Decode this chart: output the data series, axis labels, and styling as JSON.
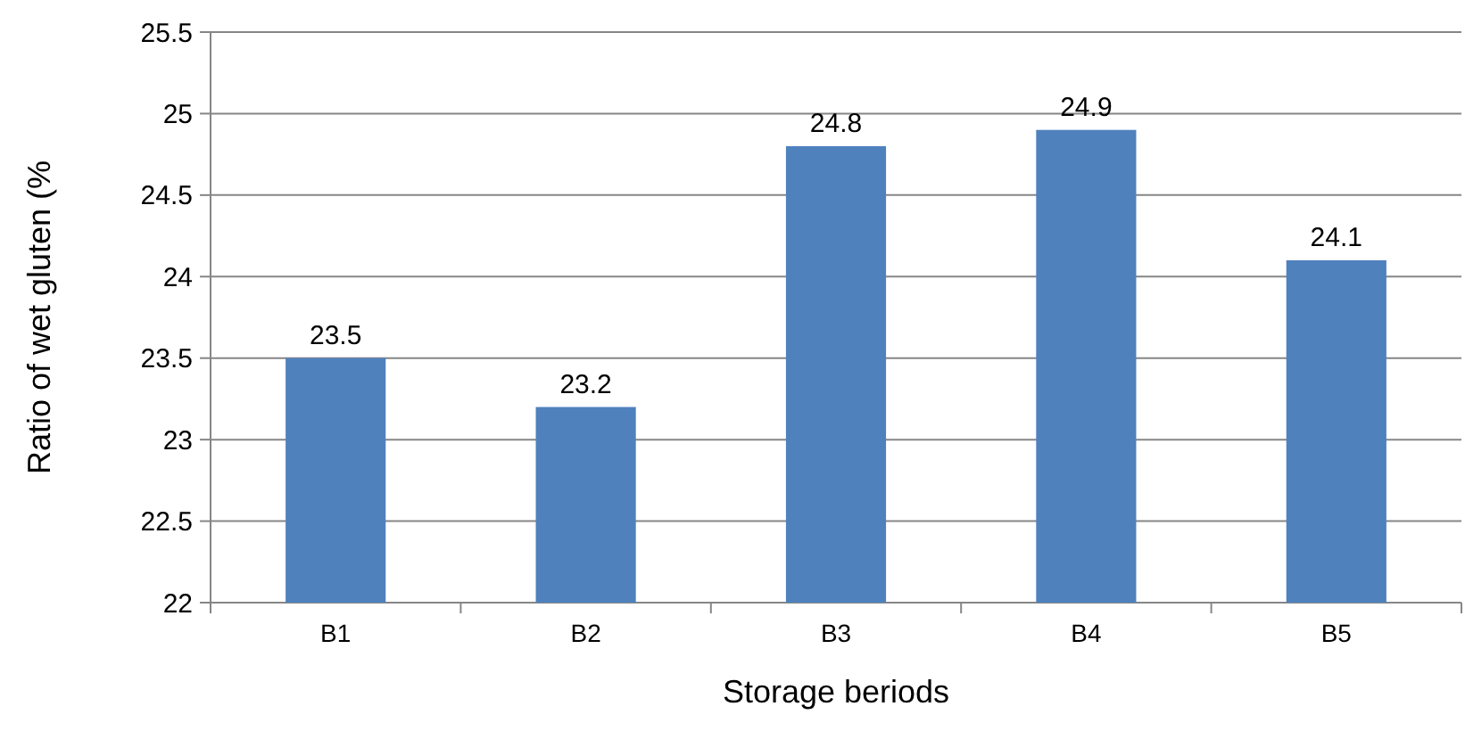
{
  "chart_data": {
    "type": "bar",
    "xlabel": "Storage beriods",
    "ylabel": "Ratio of wet gluten (%",
    "categories": [
      "B1",
      "B2",
      "B3",
      "B4",
      "B5"
    ],
    "values": [
      23.5,
      23.2,
      24.8,
      24.9,
      24.1
    ],
    "color": "#4f81bd",
    "ylim": [
      22,
      25.5
    ],
    "yticks": [
      22,
      22.5,
      23,
      23.5,
      24,
      24.5,
      25,
      25.5
    ],
    "grid": "y",
    "data_labels": true
  }
}
